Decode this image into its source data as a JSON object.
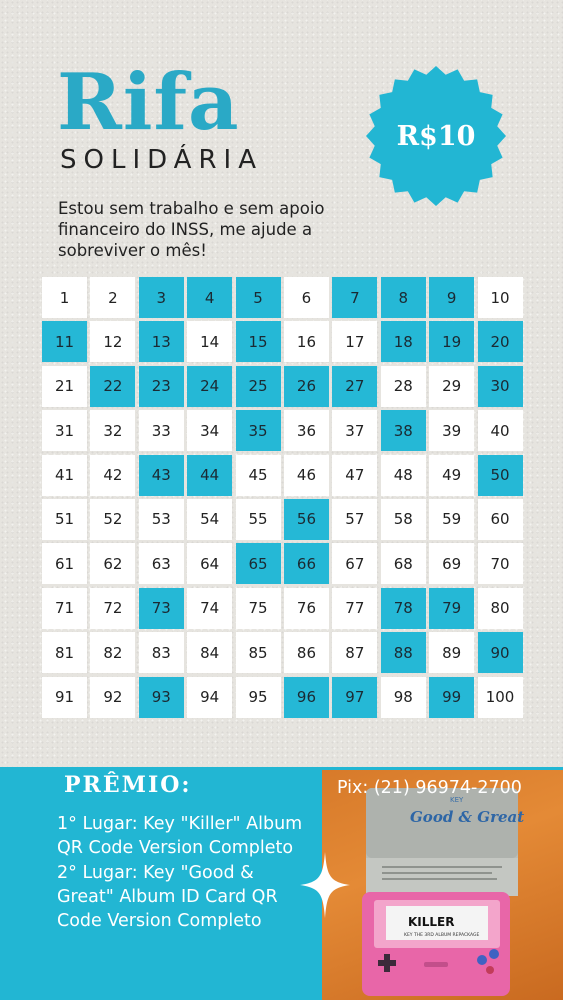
{
  "header": {
    "title": "Rifa",
    "subtitle": "SOLIDÁRIA",
    "price": "R$10",
    "description": "Estou sem trabalho e sem apoio financeiro do INSS, me ajude a sobreviver o mês!"
  },
  "grid": {
    "numbers": [
      1,
      2,
      3,
      4,
      5,
      6,
      7,
      8,
      9,
      10,
      11,
      12,
      13,
      14,
      15,
      16,
      17,
      18,
      19,
      20,
      21,
      22,
      23,
      24,
      25,
      26,
      27,
      28,
      29,
      30,
      31,
      32,
      33,
      34,
      35,
      36,
      37,
      38,
      39,
      40,
      41,
      42,
      43,
      44,
      45,
      46,
      47,
      48,
      49,
      50,
      51,
      52,
      53,
      54,
      55,
      56,
      57,
      58,
      59,
      60,
      61,
      62,
      63,
      64,
      65,
      66,
      67,
      68,
      69,
      70,
      71,
      72,
      73,
      74,
      75,
      76,
      77,
      78,
      79,
      80,
      81,
      82,
      83,
      84,
      85,
      86,
      87,
      88,
      89,
      90,
      91,
      92,
      93,
      94,
      95,
      96,
      97,
      98,
      99,
      100
    ],
    "taken": [
      3,
      4,
      5,
      7,
      8,
      9,
      11,
      13,
      15,
      18,
      19,
      20,
      22,
      23,
      24,
      25,
      26,
      27,
      30,
      35,
      38,
      43,
      44,
      50,
      56,
      65,
      66,
      73,
      78,
      79,
      88,
      90,
      93,
      96,
      97,
      99
    ]
  },
  "prize": {
    "title": "PRÊMIO:",
    "first": "1° Lugar: Key \"Killer\" Album QR Code Version Completo",
    "second": "2° Lugar: Key \"Good & Great\" Album ID Card QR Code Version Completo",
    "pix": "Pix: (21) 96974-2700"
  },
  "photo": {
    "box_brand": "KEY",
    "box_title": "Good & Great",
    "console_title": "KILLER",
    "console_caption": "KEY THE 3RD ALBUM REPACKAGE"
  },
  "colors": {
    "accent": "#2aa9c6",
    "cell_taken": "#25b8d6",
    "prize_bg": "#22b6d3",
    "console_pink": "#e866a8",
    "photo_orange": "#e48a36"
  }
}
